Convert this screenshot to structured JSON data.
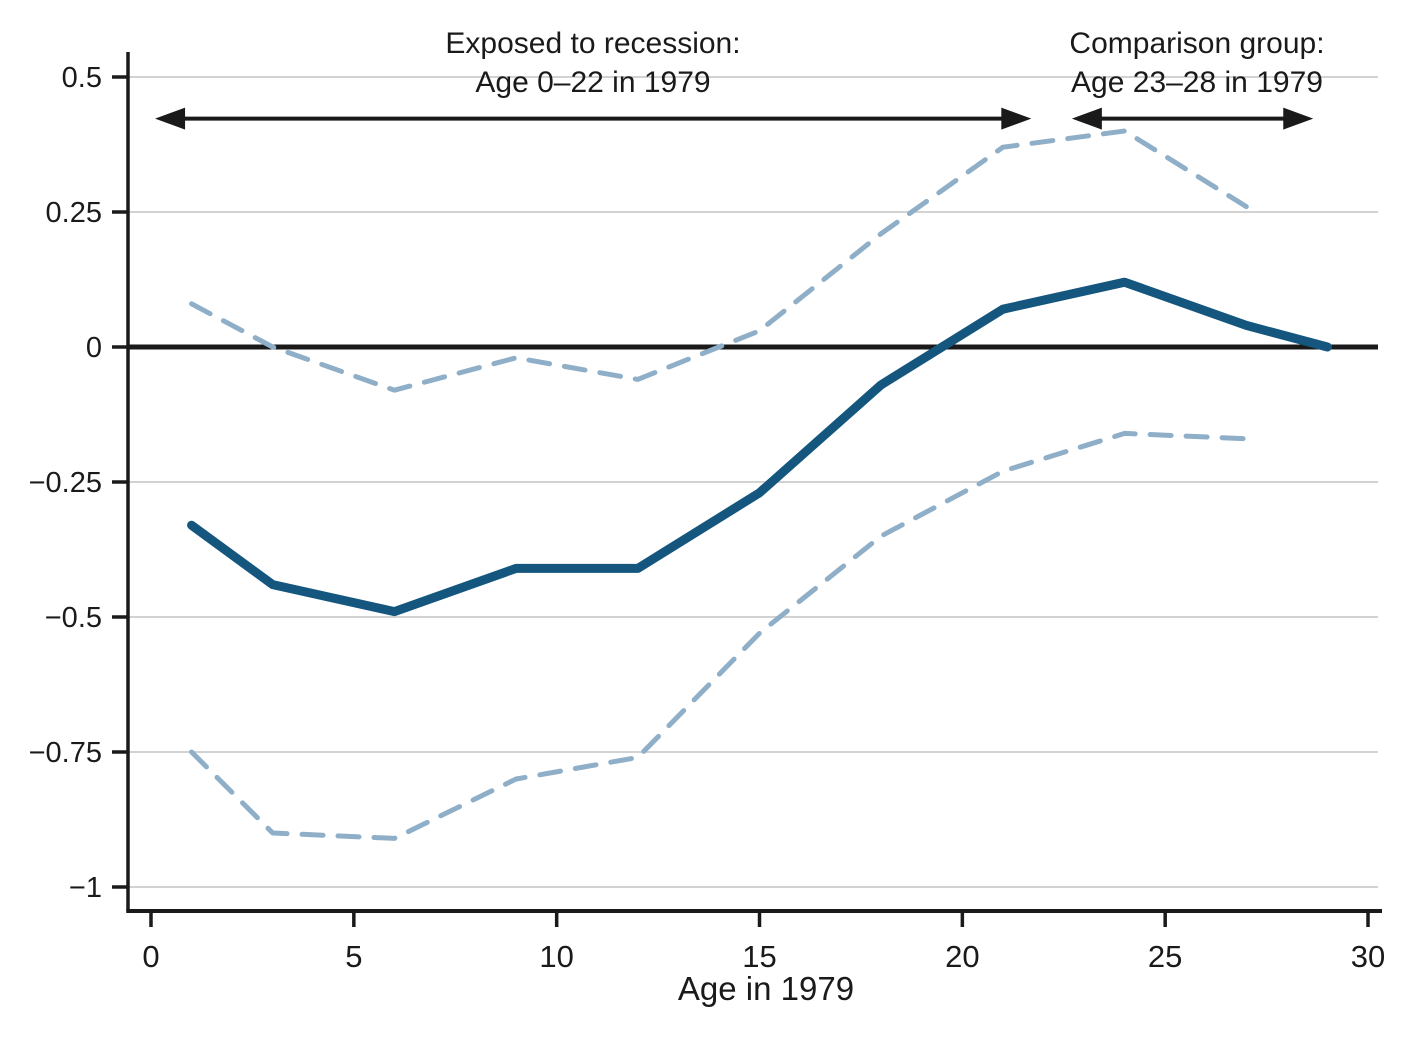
{
  "chart_data": {
    "type": "line",
    "title": "",
    "xlabel": "Age in 1979",
    "ylabel": "",
    "grid": "horizontal",
    "legend": "none",
    "xlim": [
      -0.57,
      30.34
    ],
    "ylim": [
      -1.04,
      0.55
    ],
    "x_ticks": [
      {
        "v": 0,
        "label": "0"
      },
      {
        "v": 5,
        "label": "5"
      },
      {
        "v": 10,
        "label": "10"
      },
      {
        "v": 15,
        "label": "15"
      },
      {
        "v": 20,
        "label": "20"
      },
      {
        "v": 25,
        "label": "25"
      },
      {
        "v": 30,
        "label": "30"
      }
    ],
    "y_ticks": [
      {
        "v": 0.5,
        "label": "0.5"
      },
      {
        "v": 0.25,
        "label": "0.25"
      },
      {
        "v": 0,
        "label": "0"
      },
      {
        "v": -0.25,
        "label": "−0.25"
      },
      {
        "v": -0.5,
        "label": "−0.5"
      },
      {
        "v": -0.75,
        "label": "−0.75"
      },
      {
        "v": -1,
        "label": "−1"
      }
    ],
    "zero_line": {
      "v": 0,
      "color": "#1a1a1a",
      "width": 5
    },
    "series": [
      {
        "name": "point-estimate",
        "style": "solid",
        "color": "#14567e",
        "width": 9,
        "ages": [
          1,
          3,
          6,
          9,
          12,
          15,
          18,
          21,
          24,
          27,
          29
        ],
        "values": [
          -0.33,
          -0.44,
          -0.49,
          -0.41,
          -0.41,
          -0.27,
          -0.07,
          0.07,
          0.12,
          0.04,
          0.0
        ]
      },
      {
        "name": "upper-confidence-bound",
        "style": "dashed",
        "color": "#8fafc8",
        "width": 5,
        "ages": [
          1,
          3,
          6,
          9,
          12,
          15,
          18,
          21,
          24,
          27
        ],
        "values": [
          0.08,
          0.0,
          -0.08,
          -0.02,
          -0.06,
          0.03,
          0.21,
          0.37,
          0.4,
          0.26
        ]
      },
      {
        "name": "lower-confidence-bound",
        "style": "dashed",
        "color": "#8fafc8",
        "width": 5,
        "ages": [
          1,
          3,
          6,
          9,
          12,
          15,
          18,
          21,
          24,
          27
        ],
        "values": [
          -0.75,
          -0.9,
          -0.91,
          -0.8,
          -0.76,
          -0.53,
          -0.35,
          -0.23,
          -0.16,
          -0.17
        ]
      }
    ],
    "annotations": [
      {
        "name": "exposed-group",
        "lines": [
          "Exposed to recession:",
          "Age 0–22 in 1979"
        ],
        "arrow": {
          "from_age": 0.1,
          "to_age": 21.7,
          "y_value": 0.423,
          "double_headed": true
        }
      },
      {
        "name": "comparison-group",
        "lines": [
          "Comparison group:",
          "Age 23–28 in 1979"
        ],
        "arrow": {
          "from_age": 22.7,
          "to_age": 28.65,
          "y_value": 0.423,
          "double_headed": true
        }
      }
    ]
  },
  "colors": {
    "background": "#ffffff",
    "axis": "#1a1a1a",
    "gridline": "#d2d2d2",
    "estimate_line": "#14567e",
    "ci_line": "#8fafc8"
  }
}
